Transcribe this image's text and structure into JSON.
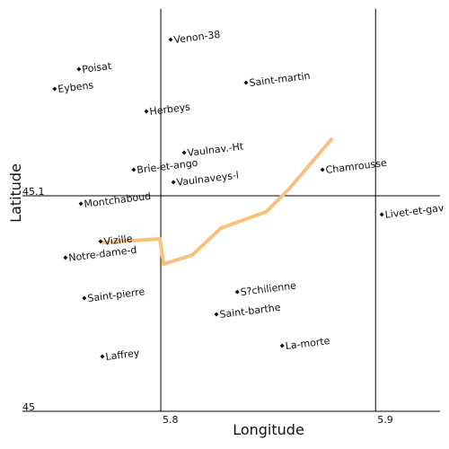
{
  "chart_data": {
    "type": "scatter",
    "x_label": "Longitude",
    "y_label": "Latitude",
    "xlim": [
      5.7356,
      5.93
    ],
    "ylim": [
      45.0,
      45.1867
    ],
    "xticks": [
      5.8,
      5.9
    ],
    "yticks": [
      45,
      45.1
    ],
    "grid": true,
    "points": [
      {
        "label": "Venon-38",
        "x": 5.8046,
        "y": 45.1725
      },
      {
        "label": "Poisat",
        "x": 5.7619,
        "y": 45.1588
      },
      {
        "label": "Eybens",
        "x": 5.7506,
        "y": 45.1496
      },
      {
        "label": "Saint-martin",
        "x": 5.8397,
        "y": 45.1525
      },
      {
        "label": "Herbeys",
        "x": 5.7933,
        "y": 45.1392
      },
      {
        "label": "Vaulnav.-Ht",
        "x": 5.8109,
        "y": 45.12
      },
      {
        "label": "Brie-et-ango",
        "x": 5.7874,
        "y": 45.1121
      },
      {
        "label": "Vaulnaveys-l",
        "x": 5.8059,
        "y": 45.1063
      },
      {
        "label": "Chamrousse",
        "x": 5.8753,
        "y": 45.1121
      },
      {
        "label": "Montchaboud",
        "x": 5.7628,
        "y": 45.0963
      },
      {
        "label": "Livet-et-gav",
        "x": 5.9029,
        "y": 45.0913
      },
      {
        "label": "Vizille",
        "x": 5.772,
        "y": 45.0788
      },
      {
        "label": "Notre-dame-d",
        "x": 5.7556,
        "y": 45.0713
      },
      {
        "label": "Saint-pierre",
        "x": 5.7644,
        "y": 45.0525
      },
      {
        "label": "S?chilienne",
        "x": 5.8356,
        "y": 45.0554
      },
      {
        "label": "Saint-barthe",
        "x": 5.8259,
        "y": 45.045
      },
      {
        "label": "La-morte",
        "x": 5.8565,
        "y": 45.0304
      },
      {
        "label": "Laffrey",
        "x": 5.7728,
        "y": 45.0254
      }
    ],
    "track": {
      "color": "#f8c27c",
      "x": [
        5.7728,
        5.7996,
        5.8013,
        5.8146,
        5.828,
        5.849,
        5.8598,
        5.8799
      ],
      "y": [
        45.0783,
        45.08,
        45.0683,
        45.0725,
        45.085,
        45.0925,
        45.1033,
        45.1267
      ]
    }
  }
}
